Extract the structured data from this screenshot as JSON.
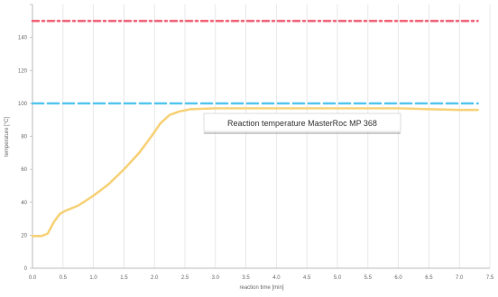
{
  "chart_data": {
    "type": "line",
    "title": "",
    "xlabel": "reaction time [min]",
    "ylabel": "temperature [°C]",
    "xlim": [
      0,
      7.5
    ],
    "ylim": [
      0,
      160
    ],
    "x_ticks": [
      0,
      0.5,
      1.0,
      1.5,
      2.0,
      2.5,
      3.0,
      3.5,
      4.0,
      4.5,
      5.0,
      5.5,
      6.0,
      6.5,
      7.0,
      7.5
    ],
    "x_tick_labels": [
      "0.0",
      "0.5",
      "1.0",
      "1.5",
      "2.0",
      "2.5",
      "3.0",
      "3.5",
      "4.0",
      "4.5",
      "5.0",
      "5.5",
      "6.0",
      "6.5",
      "7.0",
      "7.5"
    ],
    "y_ticks": [
      0,
      20,
      40,
      60,
      80,
      100,
      120,
      140,
      160
    ],
    "y_tick_labels": [
      "0",
      "20",
      "40",
      "60",
      "80",
      "100",
      "120",
      "140",
      ""
    ],
    "grid": {
      "vertical": true,
      "horizontal": false,
      "color": "#e2e2e2"
    },
    "annotation": {
      "text": "Reaction temperature MasterRoc MP 368",
      "x": 3.0,
      "y": 91
    },
    "series": [
      {
        "color": "#f7d27a",
        "style": "solid",
        "x": [
          0,
          0.15,
          0.25,
          0.35,
          0.45,
          0.55,
          0.75,
          1.0,
          1.25,
          1.5,
          1.75,
          1.95,
          2.1,
          2.25,
          2.4,
          2.6,
          3.0,
          3.5,
          4.0,
          5.0,
          6.0,
          6.5,
          7.0,
          7.3
        ],
        "y": [
          19.5,
          19.5,
          21,
          28,
          33,
          35,
          38,
          44,
          51,
          60,
          70,
          80,
          88,
          93,
          95,
          96.5,
          97,
          97,
          97,
          97,
          97,
          96.5,
          96,
          96
        ]
      },
      {
        "color": "#5bc8ee",
        "style": "dashed",
        "x": [
          0,
          7.3
        ],
        "y": [
          100,
          100
        ]
      },
      {
        "color": "#f06a7d",
        "style": "dashdot",
        "x": [
          0,
          7.3
        ],
        "y": [
          150,
          150
        ]
      }
    ]
  }
}
